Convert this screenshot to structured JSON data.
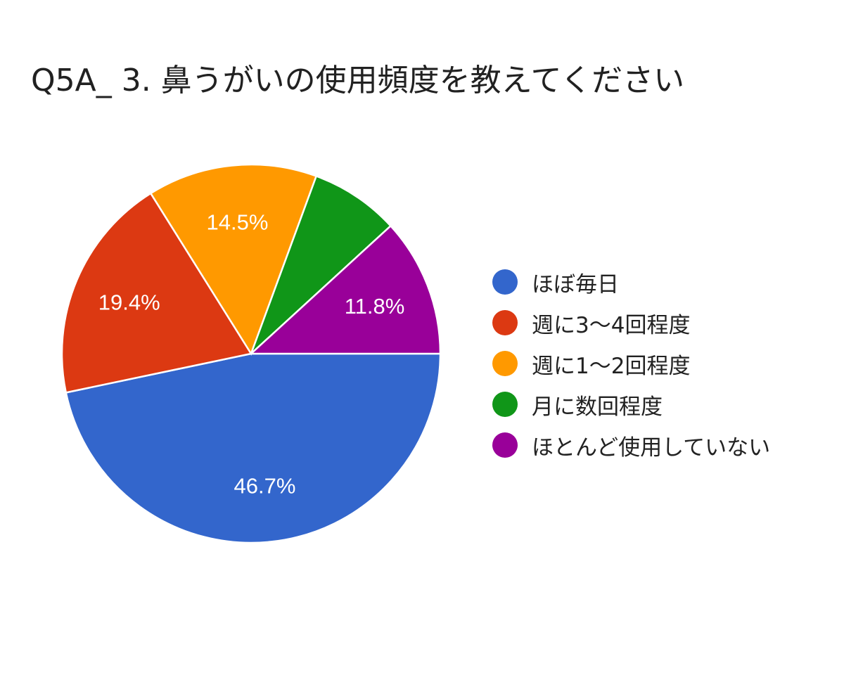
{
  "chart_data": {
    "type": "pie",
    "title": "Q5A_ 3. 鼻うがいの使用頻度を教えてください",
    "categories": [
      "ほぼ毎日",
      "週に3〜4回程度",
      "週に1〜2回程度",
      "月に数回程度",
      "ほとんど使用していない"
    ],
    "values": [
      46.7,
      19.4,
      14.5,
      7.6,
      11.8
    ],
    "data_labels": [
      "46.7%",
      "19.4%",
      "14.5%",
      "",
      "11.8%"
    ],
    "colors": [
      "#3366cc",
      "#dc3912",
      "#ff9900",
      "#109618",
      "#990099"
    ],
    "start_angle": "3 o'clock, clockwise",
    "legend_position": "right"
  }
}
